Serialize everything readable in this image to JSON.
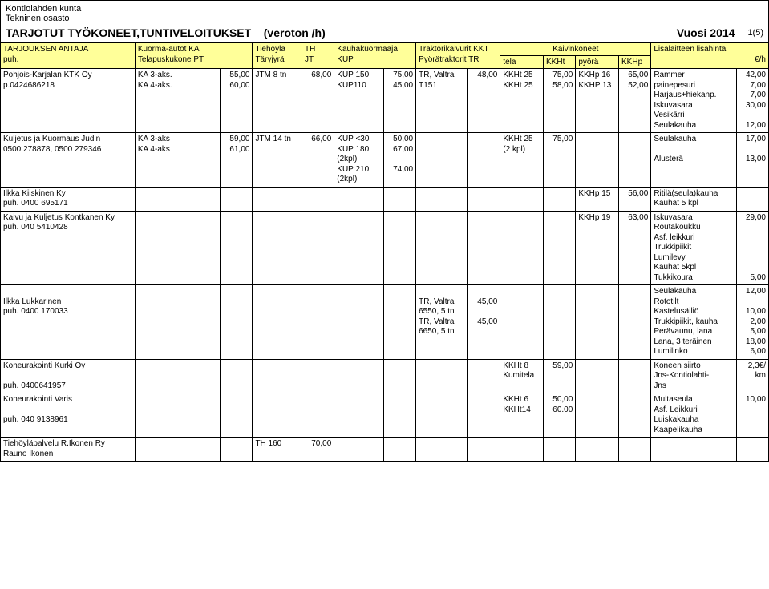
{
  "org": {
    "name": "Kontiolahden kunta",
    "dept": "Tekninen osasto"
  },
  "title": {
    "main": "TARJOTUT TYÖKONEET,TUNTIVELOITUKSET",
    "paren": "(veroton /h)",
    "year": "Vuosi 2014",
    "page": "1(5)"
  },
  "hdr": {
    "c0a": "TARJOUKSEN ANTAJA",
    "c0b": "puh.",
    "c1a": "Kuorma-autot KA",
    "c1b": "Telapuskukone  PT",
    "c2a": "Tiehöylä",
    "c2b": "Täryjyrä",
    "c3a": "TH",
    "c3b": "JT",
    "c4a": "Kauhakuormaaja",
    "c4b": "KUP",
    "c5a": "Traktorikaivurit KKT",
    "c5b": "Pyörätraktorit TR",
    "c_tela": "tela",
    "c_kkht": "KKHt",
    "c_kaiv": "Kaivinkoneet",
    "c_pyora": "pyörä",
    "c_kkhp": "KKHp",
    "c_lisa": "Lisälaitteen lisähinta",
    "c_eur": "€/h"
  },
  "rows": [
    {
      "company": "Pohjois-Karjalan KTK Oy\np.0424686218",
      "kt": "KA 3-aks.\nKA 4-aks.",
      "kt_n": "55,00\n60,00",
      "th": "JTM 8 tn",
      "th_n": "68,00",
      "kup": "KUP 150\nKUP110",
      "kup_n": "75,00\n45,00",
      "trk": "TR, Valtra\nT151",
      "trk_n": "48,00",
      "kkht": "KKHt 25\nKKHt 25",
      "kkht_n": "75,00\n58,00",
      "kkhp": "KKHp 16\nKKHP 13",
      "kkhp_n": "65,00\n52,00",
      "lisa": "Rammer\npainepesuri\nHarjaus+hiekanp.\nIskuvasara\nVesikärri\nSeulakauha",
      "lisa_n": "42,00\n7,00\n7,00\n30,00\n\n12,00"
    },
    {
      "company": "Kuljetus ja Kuormaus Judin\n0500 278878, 0500 279346",
      "kt": "KA 3-aks\nKA 4-aks",
      "kt_n": "59,00\n61,00",
      "th": "JTM 14 tn",
      "th_n": "66,00",
      "kup": "KUP <30\nKUP 180\n(2kpl)\nKUP 210\n(2kpl)",
      "kup_n": "50,00\n67,00\n\n74,00",
      "trk": "",
      "trk_n": "",
      "kkht": "KKHt 25\n(2 kpl)",
      "kkht_n": "75,00",
      "kkhp": "",
      "kkhp_n": "",
      "lisa": "Seulakauha\n\nAlusterä",
      "lisa_n": "17,00\n\n13,00"
    },
    {
      "company": "Ilkka Kiiskinen Ky\npuh. 0400 695171",
      "kt": "",
      "kt_n": "",
      "th": "",
      "th_n": "",
      "kup": "",
      "kup_n": "",
      "trk": "",
      "trk_n": "",
      "kkht": "",
      "kkht_n": "",
      "kkhp": "KKHp 15",
      "kkhp_n": "56,00",
      "lisa": "Ritilä(seula)kauha\nKauhat 5 kpl",
      "lisa_n": ""
    },
    {
      "company": "Kaivu ja Kuljetus Kontkanen Ky\npuh. 040 5410428",
      "kt": "",
      "kt_n": "",
      "th": "",
      "th_n": "",
      "kup": "",
      "kup_n": "",
      "trk": "",
      "trk_n": "",
      "kkht": "",
      "kkht_n": "",
      "kkhp": "KKHp 19",
      "kkhp_n": "63,00",
      "lisa": "Iskuvasara\nRoutakoukku\nAsf. leikkuri\nTrukkipiikit\nLumilevy\nKauhat 5kpl\nTukkikoura",
      "lisa_n": "29,00\n\n\n\n\n\n5,00"
    },
    {
      "company": "\nIlkka Lukkarinen\npuh. 0400 170033",
      "kt": "",
      "kt_n": "",
      "th": "",
      "th_n": "",
      "kup": "",
      "kup_n": "",
      "trk": "\nTR, Valtra\n6550, 5 tn\nTR, Valtra\n6650, 5 tn",
      "trk_n": "\n45,00\n\n45,00",
      "kkht": "",
      "kkht_n": "",
      "kkhp": "",
      "kkhp_n": "",
      "lisa": "Seulakauha\nRototilt\nKastelusäiliö\nTrukkipiikit, kauha\nPerävaunu, lana\nLana, 3 teräinen\nLumilinko",
      "lisa_n": "12,00\n\n10,00\n2,00\n5,00\n18,00\n6,00"
    },
    {
      "company": "Koneurakointi Kurki Oy\n\npuh. 0400641957",
      "kt": "",
      "kt_n": "",
      "th": "",
      "th_n": "",
      "kup": "",
      "kup_n": "",
      "trk": "",
      "trk_n": "",
      "kkht": "KKHt 8\nKumitela",
      "kkht_n": "59,00",
      "kkhp": "",
      "kkhp_n": "",
      "lisa": "Koneen siirto\nJns-Kontiolahti-\nJns",
      "lisa_n": "2,3€/\nkm"
    },
    {
      "company": "Koneurakointi Varis\n\npuh. 040 9138961",
      "kt": "",
      "kt_n": "",
      "th": "",
      "th_n": "",
      "kup": "",
      "kup_n": "",
      "trk": "",
      "trk_n": "",
      "kkht": "KKHt 6\nKKHt14",
      "kkht_n": "50,00\n60.00",
      "kkhp": "",
      "kkhp_n": "",
      "lisa": "Multaseula\nAsf. Leikkuri\nLuiskakauha\nKaapelikauha",
      "lisa_n": "10,00"
    },
    {
      "company": "Tiehöyläpalvelu R.Ikonen Ry\nRauno Ikonen",
      "kt": "",
      "kt_n": "",
      "th": "TH 160",
      "th_n": "70,00",
      "kup": "",
      "kup_n": "",
      "trk": "",
      "trk_n": "",
      "kkht": "",
      "kkht_n": "",
      "kkhp": "",
      "kkhp_n": "",
      "lisa": "",
      "lisa_n": ""
    }
  ]
}
